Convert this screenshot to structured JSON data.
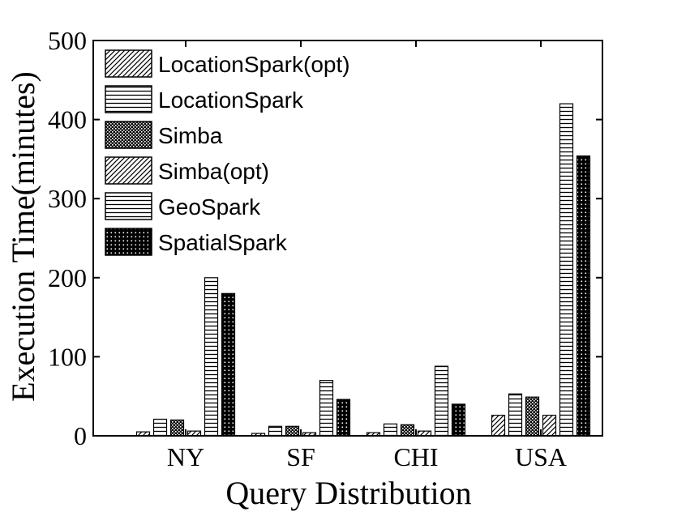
{
  "chart_data": {
    "type": "bar",
    "xlabel": "Query Distribution",
    "ylabel": "Execution Time(minutes)",
    "ylim": [
      0,
      500
    ],
    "yticks": [
      0,
      100,
      200,
      300,
      400,
      500
    ],
    "categories": [
      "NY",
      "SF",
      "CHI",
      "USA"
    ],
    "legend_position": "top-left",
    "series": [
      {
        "name": "LocationSpark(opt)",
        "pattern": "diagonal",
        "values": [
          5,
          3,
          4,
          26
        ]
      },
      {
        "name": "LocationSpark",
        "pattern": "horizontal",
        "values": [
          21,
          12,
          15,
          53
        ]
      },
      {
        "name": "Simba",
        "pattern": "crosshatch",
        "values": [
          20,
          12,
          14,
          49
        ]
      },
      {
        "name": "Simba(opt)",
        "pattern": "diagonal",
        "values": [
          6,
          4,
          6,
          26
        ]
      },
      {
        "name": "GeoSpark",
        "pattern": "horizontal",
        "values": [
          200,
          70,
          88,
          420
        ]
      },
      {
        "name": "SpatialSpark",
        "pattern": "dots",
        "values": [
          180,
          46,
          40,
          354
        ]
      }
    ]
  }
}
